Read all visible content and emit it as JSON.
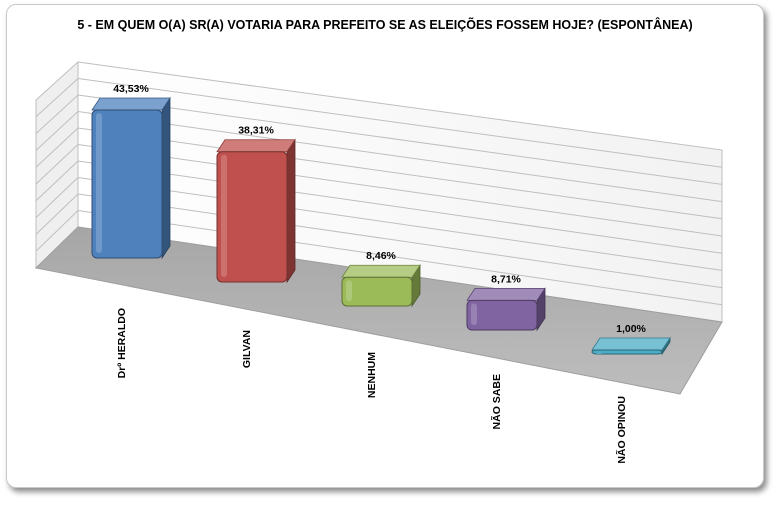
{
  "chart_data": {
    "type": "bar",
    "title": "5 - EM QUEM O(A) SR(A) VOTARIA PARA PREFEITO SE AS ELEIÇÕES FOSSEM HOJE? (ESPONTÂNEA)",
    "categories": [
      "Drº HERALDO",
      "GILVAN",
      "NENHUM",
      "NÃO SABE",
      "NÃO OPINOU"
    ],
    "values": [
      43.53,
      38.31,
      8.46,
      8.71,
      1.0
    ],
    "value_labels": [
      "43,53%",
      "38,31%",
      "8,46%",
      "8,71%",
      "1,00%"
    ],
    "colors": [
      "#4f81bd",
      "#c0504d",
      "#9bbb59",
      "#8064a2",
      "#4bacc6"
    ],
    "ylim": [
      0,
      50
    ],
    "grid": true,
    "legend": "none",
    "style": "3d-column"
  }
}
